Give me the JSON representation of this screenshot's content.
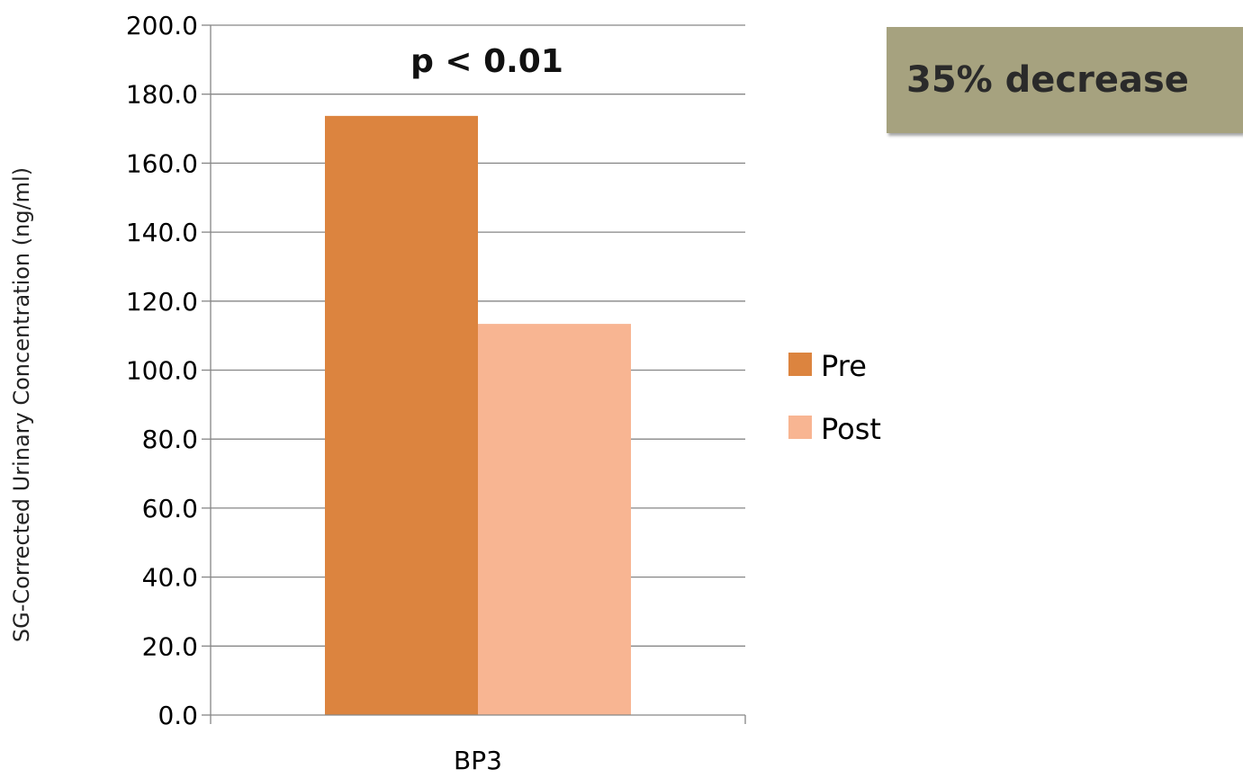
{
  "chart_data": {
    "type": "bar",
    "categories": [
      "BP3"
    ],
    "series": [
      {
        "name": "Pre",
        "values": [
          173.7
        ],
        "color": "#dc843f"
      },
      {
        "name": "Post",
        "values": [
          113.4
        ],
        "color": "#f8b592"
      }
    ],
    "title": "",
    "xlabel": "",
    "ylabel": "SG-Corrected Urinary Concentration (ng/ml)",
    "ylim": [
      0,
      200
    ],
    "yticks": [
      "0.0",
      "20.0",
      "40.0",
      "60.0",
      "80.0",
      "100.0",
      "120.0",
      "140.0",
      "160.0",
      "180.0",
      "200.0"
    ],
    "grid": true,
    "legend": "right",
    "annotations": [
      "p < 0.01"
    ]
  },
  "callout": {
    "text": "35% decrease",
    "background": "#a6a27f"
  }
}
